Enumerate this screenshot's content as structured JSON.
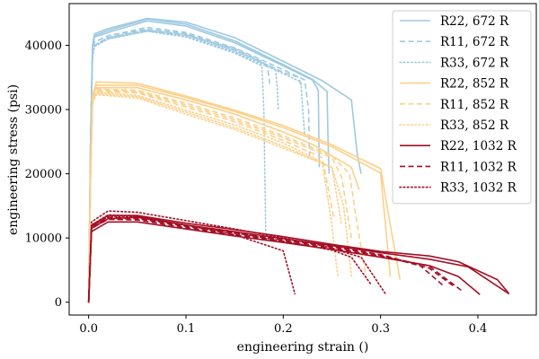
{
  "chart_data": {
    "type": "line",
    "title": "",
    "xlabel": "engineering strain ()",
    "ylabel": "engineering stress (psi)",
    "xlim": [
      -0.02,
      0.46
    ],
    "ylim": [
      -2000,
      46500
    ],
    "xticks": [
      0.0,
      0.1,
      0.2,
      0.3,
      0.4
    ],
    "xtick_labels": [
      "0.0",
      "0.1",
      "0.2",
      "0.3",
      "0.4"
    ],
    "yticks": [
      0,
      10000,
      20000,
      30000,
      40000
    ],
    "ytick_labels": [
      "0",
      "10000",
      "20000",
      "30000",
      "40000"
    ],
    "grid": false,
    "legend_position": "top-right",
    "colors": {
      "672": "#9ecae1",
      "852": "#fdd08a",
      "1032": "#a50f26"
    },
    "series": [
      {
        "name": "R22, 672 R",
        "color": "#9ecae1",
        "dash": "solid",
        "legend": true,
        "x": [
          0,
          0.002,
          0.004,
          0.006,
          0.02,
          0.06,
          0.1,
          0.15,
          0.2,
          0.24,
          0.27,
          0.276,
          0.28
        ],
        "y": [
          0,
          25000,
          40000,
          41800,
          42600,
          44200,
          43600,
          41200,
          37500,
          34500,
          31500,
          23000,
          20000
        ]
      },
      {
        "name": "R22, 672 R (2)",
        "color": "#9ecae1",
        "dash": "solid",
        "legend": false,
        "x": [
          0,
          0.002,
          0.004,
          0.006,
          0.02,
          0.06,
          0.1,
          0.15,
          0.2,
          0.23,
          0.245,
          0.246,
          0.247
        ],
        "y": [
          0,
          25000,
          40000,
          41500,
          42300,
          44100,
          43300,
          40700,
          37000,
          34700,
          32800,
          25000,
          20000
        ]
      },
      {
        "name": "R22, 672 R (3)",
        "color": "#9ecae1",
        "dash": "solid",
        "legend": false,
        "x": [
          0,
          0.002,
          0.004,
          0.006,
          0.02,
          0.06,
          0.1,
          0.15,
          0.2,
          0.23,
          0.236,
          0.237
        ],
        "y": [
          0,
          25000,
          39500,
          41300,
          42000,
          43800,
          43000,
          40400,
          36800,
          34600,
          33000,
          21000
        ]
      },
      {
        "name": "R11, 672 R",
        "color": "#9ecae1",
        "dash": "dashed",
        "legend": true,
        "x": [
          0,
          0.002,
          0.004,
          0.006,
          0.02,
          0.06,
          0.1,
          0.15,
          0.2,
          0.222,
          0.226,
          0.227
        ],
        "y": [
          0,
          25000,
          39500,
          40500,
          41500,
          42800,
          42000,
          39600,
          36200,
          34600,
          30000,
          22500
        ]
      },
      {
        "name": "R11, 672 R (2)",
        "color": "#9ecae1",
        "dash": "dashed",
        "legend": false,
        "x": [
          0,
          0.002,
          0.004,
          0.006,
          0.02,
          0.06,
          0.1,
          0.15,
          0.2,
          0.216,
          0.218
        ],
        "y": [
          0,
          25000,
          39000,
          40500,
          41500,
          42500,
          41800,
          39300,
          35800,
          35000,
          33800
        ]
      },
      {
        "name": "R11, 672 R (3)",
        "color": "#9ecae1",
        "dash": "dashed",
        "legend": false,
        "x": [
          0,
          0.002,
          0.004,
          0.006,
          0.02,
          0.06,
          0.1,
          0.15,
          0.18,
          0.184,
          0.186
        ],
        "y": [
          0,
          25000,
          39000,
          40000,
          41200,
          42300,
          41600,
          39500,
          37300,
          36500,
          34000
        ]
      },
      {
        "name": "R33, 672 R",
        "color": "#9ecae1",
        "dash": "dotted",
        "legend": true,
        "x": [
          0,
          0.002,
          0.004,
          0.006,
          0.02,
          0.06,
          0.1,
          0.15,
          0.178,
          0.18,
          0.182
        ],
        "y": [
          0,
          24000,
          38500,
          40000,
          41000,
          42200,
          41300,
          38800,
          36800,
          30000,
          11000
        ]
      },
      {
        "name": "R33, 672 R (2)",
        "color": "#9ecae1",
        "dash": "dotted",
        "legend": false,
        "x": [
          0,
          0.002,
          0.004,
          0.006,
          0.02,
          0.06,
          0.1,
          0.15,
          0.192,
          0.194,
          0.195
        ],
        "y": [
          0,
          24000,
          38500,
          40000,
          41200,
          42400,
          41700,
          39200,
          36400,
          33000,
          29800
        ]
      },
      {
        "name": "R33, 672 R (3)",
        "color": "#9ecae1",
        "dash": "dotted",
        "legend": false,
        "x": [
          0,
          0.002,
          0.004,
          0.006,
          0.02,
          0.06,
          0.1,
          0.15,
          0.2,
          0.218,
          0.22,
          0.222
        ],
        "y": [
          0,
          24000,
          38000,
          39800,
          41000,
          42200,
          41500,
          39000,
          35600,
          34300,
          30000,
          26000
        ]
      },
      {
        "name": "R22, 852 R",
        "color": "#fdd08a",
        "dash": "solid",
        "legend": true,
        "x": [
          0,
          0.002,
          0.004,
          0.008,
          0.05,
          0.1,
          0.15,
          0.2,
          0.25,
          0.3,
          0.31,
          0.32
        ],
        "y": [
          0,
          20000,
          32000,
          34300,
          34100,
          32100,
          29900,
          27500,
          24500,
          20800,
          12000,
          3500
        ]
      },
      {
        "name": "R22, 852 R (2)",
        "color": "#fdd08a",
        "dash": "solid",
        "legend": false,
        "x": [
          0,
          0.002,
          0.004,
          0.008,
          0.05,
          0.1,
          0.15,
          0.2,
          0.25,
          0.3,
          0.31
        ],
        "y": [
          0,
          20000,
          32000,
          33800,
          33800,
          31900,
          29700,
          27200,
          24200,
          20100,
          4000
        ]
      },
      {
        "name": "R22, 852 R (3)",
        "color": "#fdd08a",
        "dash": "solid",
        "legend": false,
        "x": [
          0,
          0.002,
          0.004,
          0.008,
          0.05,
          0.1,
          0.15,
          0.2,
          0.23,
          0.27,
          0.278
        ],
        "y": [
          0,
          20000,
          32000,
          33400,
          33400,
          31500,
          29300,
          26500,
          24600,
          21000,
          17500
        ]
      },
      {
        "name": "R11, 852 R",
        "color": "#fdd08a",
        "dash": "dashed",
        "legend": true,
        "x": [
          0,
          0.002,
          0.004,
          0.008,
          0.05,
          0.1,
          0.15,
          0.2,
          0.25,
          0.268,
          0.275,
          0.285
        ],
        "y": [
          0,
          20000,
          31500,
          33200,
          33000,
          31000,
          28700,
          25900,
          22800,
          20000,
          13000,
          4000
        ]
      },
      {
        "name": "R11, 852 R (2)",
        "color": "#fdd08a",
        "dash": "dashed",
        "legend": false,
        "x": [
          0,
          0.002,
          0.004,
          0.008,
          0.05,
          0.1,
          0.15,
          0.2,
          0.25,
          0.26,
          0.27
        ],
        "y": [
          0,
          20000,
          31500,
          33000,
          32800,
          30700,
          28400,
          25600,
          22500,
          19500,
          10000
        ]
      },
      {
        "name": "R11, 852 R (3)",
        "color": "#fdd08a",
        "dash": "dashed",
        "legend": false,
        "x": [
          0,
          0.002,
          0.004,
          0.008,
          0.05,
          0.1,
          0.15,
          0.2,
          0.24,
          0.252
        ],
        "y": [
          0,
          20000,
          31500,
          32800,
          32600,
          30400,
          28100,
          25200,
          22500,
          13000
        ]
      },
      {
        "name": "R33, 852 R",
        "color": "#fdd08a",
        "dash": "dotted",
        "legend": true,
        "x": [
          0,
          0.002,
          0.004,
          0.008,
          0.05,
          0.1,
          0.15,
          0.2,
          0.24,
          0.25,
          0.256
        ],
        "y": [
          0,
          19000,
          31000,
          32700,
          32200,
          29900,
          27600,
          24800,
          21800,
          12000,
          4000
        ]
      },
      {
        "name": "R33, 852 R (2)",
        "color": "#fdd08a",
        "dash": "dotted",
        "legend": false,
        "x": [
          0,
          0.002,
          0.004,
          0.008,
          0.05,
          0.1,
          0.15,
          0.2,
          0.25,
          0.26
        ],
        "y": [
          0,
          19000,
          31000,
          32500,
          32000,
          29600,
          27200,
          24300,
          21000,
          12000
        ]
      },
      {
        "name": "R33, 852 R (3)",
        "color": "#fdd08a",
        "dash": "dotted",
        "legend": false,
        "x": [
          0,
          0.002,
          0.004,
          0.008,
          0.05,
          0.1,
          0.15,
          0.2,
          0.25,
          0.262,
          0.27
        ],
        "y": [
          0,
          19000,
          31000,
          32300,
          31800,
          29300,
          26900,
          24000,
          21000,
          15000,
          4000
        ]
      },
      {
        "name": "R22, 1032 R",
        "color": "#a50f26",
        "dash": "solid",
        "legend": true,
        "x": [
          0,
          0.003,
          0.02,
          0.05,
          0.1,
          0.15,
          0.2,
          0.25,
          0.3,
          0.35,
          0.38,
          0.42,
          0.432
        ],
        "y": [
          0,
          12000,
          13500,
          13500,
          12300,
          11300,
          10200,
          9000,
          7900,
          7200,
          6300,
          3500,
          1300
        ]
      },
      {
        "name": "R22, 1032 R (2)",
        "color": "#a50f26",
        "dash": "solid",
        "legend": false,
        "x": [
          0,
          0.003,
          0.02,
          0.05,
          0.1,
          0.15,
          0.2,
          0.25,
          0.3,
          0.35,
          0.39,
          0.432
        ],
        "y": [
          0,
          11500,
          13000,
          13200,
          12000,
          11000,
          9900,
          8800,
          7700,
          6700,
          5500,
          1300
        ]
      },
      {
        "name": "R22, 1032 R (3)",
        "color": "#a50f26",
        "dash": "solid",
        "legend": false,
        "x": [
          0,
          0.003,
          0.02,
          0.05,
          0.1,
          0.15,
          0.2,
          0.25,
          0.3,
          0.35,
          0.38,
          0.402
        ],
        "y": [
          0,
          11000,
          12500,
          12500,
          11400,
          10300,
          9300,
          8200,
          7000,
          5700,
          4000,
          1200
        ]
      },
      {
        "name": "R11, 1032 R",
        "color": "#a50f26",
        "dash": "dashed",
        "legend": true,
        "x": [
          0,
          0.003,
          0.02,
          0.05,
          0.1,
          0.15,
          0.2,
          0.25,
          0.3,
          0.34,
          0.365
        ],
        "y": [
          0,
          11800,
          13200,
          13100,
          11900,
          10900,
          9800,
          8700,
          7400,
          5800,
          2500
        ]
      },
      {
        "name": "R11, 1032 R (2)",
        "color": "#a50f26",
        "dash": "dashed",
        "legend": false,
        "x": [
          0,
          0.003,
          0.02,
          0.05,
          0.1,
          0.15,
          0.2,
          0.25,
          0.3,
          0.35,
          0.375
        ],
        "y": [
          0,
          11800,
          13000,
          13000,
          11800,
          10700,
          9700,
          8600,
          7300,
          5300,
          2500
        ]
      },
      {
        "name": "R11, 1032 R (3)",
        "color": "#a50f26",
        "dash": "dashed",
        "legend": false,
        "x": [
          0,
          0.003,
          0.02,
          0.05,
          0.1,
          0.15,
          0.2,
          0.25,
          0.3,
          0.35,
          0.385
        ],
        "y": [
          0,
          11500,
          12900,
          12800,
          11600,
          10500,
          9500,
          8400,
          7200,
          5600,
          1600
        ]
      },
      {
        "name": "R33, 1032 R",
        "color": "#a50f26",
        "dash": "dotted",
        "legend": true,
        "x": [
          0,
          0.003,
          0.02,
          0.05,
          0.1,
          0.15,
          0.2,
          0.24,
          0.28,
          0.305
        ],
        "y": [
          0,
          12500,
          14200,
          14000,
          12700,
          11400,
          10000,
          8800,
          7000,
          1300
        ]
      },
      {
        "name": "R33, 1032 R (2)",
        "color": "#a50f26",
        "dash": "dotted",
        "legend": false,
        "x": [
          0,
          0.003,
          0.02,
          0.05,
          0.1,
          0.15,
          0.2,
          0.212
        ],
        "y": [
          0,
          12000,
          13600,
          13400,
          12000,
          10500,
          8000,
          1300
        ]
      },
      {
        "name": "R33, 1032 R (3)",
        "color": "#a50f26",
        "dash": "dotted",
        "legend": false,
        "x": [
          0,
          0.003,
          0.02,
          0.05,
          0.1,
          0.15,
          0.2,
          0.25,
          0.27,
          0.29
        ],
        "y": [
          0,
          11800,
          13300,
          13300,
          12000,
          10800,
          9500,
          8100,
          7000,
          2800
        ]
      }
    ]
  }
}
